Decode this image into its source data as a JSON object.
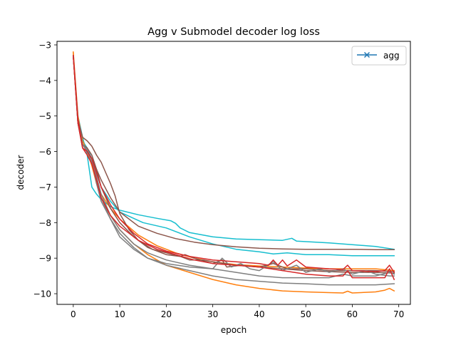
{
  "chart_data": {
    "type": "line",
    "title": "Agg v Submodel decoder log loss",
    "xlabel": "epoch",
    "ylabel": "decoder",
    "xlim": [
      -3.5,
      72.5
    ],
    "ylim": [
      -10.3,
      -2.9
    ],
    "xticks": [
      0,
      10,
      20,
      30,
      40,
      50,
      60,
      70
    ],
    "yticks": [
      -10,
      -9,
      -8,
      -7,
      -6,
      -5,
      -4,
      -3
    ],
    "xtick_labels": [
      "0",
      "10",
      "20",
      "30",
      "40",
      "50",
      "60",
      "70"
    ],
    "ytick_labels": [
      "−10",
      "−9",
      "−8",
      "−7",
      "−6",
      "−5",
      "−4",
      "−3"
    ],
    "grid": false,
    "legend": {
      "position": "upper-right",
      "entries": [
        {
          "label": "agg",
          "color": "#1f77b4",
          "marker": "x"
        }
      ]
    },
    "series": [
      {
        "name": "agg",
        "color": "#1f77b4",
        "marker": "x",
        "points": []
      },
      {
        "color": "#17becf",
        "points": [
          [
            0,
            -3.3
          ],
          [
            1,
            -5.0
          ],
          [
            2,
            -5.6
          ],
          [
            3,
            -6.1
          ],
          [
            4,
            -7.0
          ],
          [
            5,
            -7.2
          ],
          [
            6,
            -7.35
          ],
          [
            8,
            -7.55
          ],
          [
            10,
            -7.65
          ],
          [
            14,
            -7.78
          ],
          [
            18,
            -7.88
          ],
          [
            21,
            -7.95
          ],
          [
            22,
            -8.02
          ],
          [
            23,
            -8.15
          ],
          [
            25,
            -8.28
          ],
          [
            30,
            -8.4
          ],
          [
            35,
            -8.46
          ],
          [
            40,
            -8.48
          ],
          [
            45,
            -8.5
          ],
          [
            47,
            -8.44
          ],
          [
            48,
            -8.52
          ],
          [
            55,
            -8.57
          ],
          [
            60,
            -8.62
          ],
          [
            65,
            -8.67
          ],
          [
            69,
            -8.75
          ]
        ]
      },
      {
        "color": "#17becf",
        "points": [
          [
            0,
            -3.3
          ],
          [
            1,
            -5.1
          ],
          [
            2,
            -5.7
          ],
          [
            3,
            -5.9
          ],
          [
            4,
            -6.2
          ],
          [
            5,
            -6.6
          ],
          [
            6,
            -7.0
          ],
          [
            8,
            -7.4
          ],
          [
            10,
            -7.7
          ],
          [
            15,
            -8.0
          ],
          [
            20,
            -8.15
          ],
          [
            25,
            -8.4
          ],
          [
            30,
            -8.6
          ],
          [
            35,
            -8.75
          ],
          [
            40,
            -8.82
          ],
          [
            43,
            -8.88
          ],
          [
            46,
            -8.85
          ],
          [
            50,
            -8.9
          ],
          [
            55,
            -8.9
          ],
          [
            60,
            -8.93
          ],
          [
            65,
            -8.93
          ],
          [
            69,
            -8.93
          ]
        ]
      },
      {
        "color": "#ff7f0e",
        "points": [
          [
            0,
            -3.2
          ],
          [
            1,
            -5.0
          ],
          [
            2,
            -5.7
          ],
          [
            3,
            -6.0
          ],
          [
            4,
            -6.3
          ],
          [
            5,
            -6.9
          ],
          [
            6,
            -7.3
          ],
          [
            8,
            -7.8
          ],
          [
            10,
            -8.2
          ],
          [
            13,
            -8.6
          ],
          [
            16,
            -8.9
          ],
          [
            20,
            -9.2
          ],
          [
            25,
            -9.4
          ],
          [
            30,
            -9.6
          ],
          [
            35,
            -9.75
          ],
          [
            40,
            -9.85
          ],
          [
            45,
            -9.92
          ],
          [
            50,
            -9.95
          ],
          [
            55,
            -9.97
          ],
          [
            58,
            -9.98
          ],
          [
            59,
            -9.93
          ],
          [
            60,
            -9.98
          ],
          [
            65,
            -9.95
          ],
          [
            67,
            -9.9
          ],
          [
            68,
            -9.85
          ],
          [
            69,
            -9.92
          ]
        ]
      },
      {
        "color": "#ff7f0e",
        "points": [
          [
            0,
            -3.2
          ],
          [
            1,
            -5.1
          ],
          [
            2,
            -5.8
          ],
          [
            3,
            -6.0
          ],
          [
            4,
            -6.4
          ],
          [
            5,
            -6.9
          ],
          [
            6,
            -7.2
          ],
          [
            8,
            -7.6
          ],
          [
            10,
            -7.9
          ],
          [
            14,
            -8.35
          ],
          [
            18,
            -8.65
          ],
          [
            22,
            -8.85
          ],
          [
            26,
            -9.0
          ],
          [
            30,
            -9.1
          ],
          [
            35,
            -9.18
          ],
          [
            40,
            -9.22
          ],
          [
            45,
            -9.25
          ],
          [
            50,
            -9.28
          ],
          [
            55,
            -9.3
          ],
          [
            60,
            -9.3
          ],
          [
            65,
            -9.3
          ],
          [
            69,
            -9.35
          ]
        ]
      },
      {
        "color": "#8c564b",
        "points": [
          [
            0,
            -3.3
          ],
          [
            1,
            -5.2
          ],
          [
            2,
            -5.8
          ],
          [
            3,
            -6.0
          ],
          [
            4,
            -6.2
          ],
          [
            5,
            -6.5
          ],
          [
            6,
            -6.8
          ],
          [
            8,
            -7.3
          ],
          [
            10,
            -7.7
          ],
          [
            14,
            -8.1
          ],
          [
            18,
            -8.3
          ],
          [
            22,
            -8.45
          ],
          [
            26,
            -8.55
          ],
          [
            30,
            -8.62
          ],
          [
            35,
            -8.68
          ],
          [
            40,
            -8.72
          ],
          [
            45,
            -8.74
          ],
          [
            50,
            -8.75
          ],
          [
            55,
            -8.75
          ],
          [
            60,
            -8.75
          ],
          [
            65,
            -8.76
          ],
          [
            69,
            -8.76
          ]
        ]
      },
      {
        "color": "#8c564b",
        "points": [
          [
            0,
            -3.3
          ],
          [
            1,
            -5.1
          ],
          [
            2,
            -5.6
          ],
          [
            3,
            -5.7
          ],
          [
            4,
            -5.85
          ],
          [
            5,
            -6.1
          ],
          [
            6,
            -6.3
          ],
          [
            7,
            -6.6
          ],
          [
            8,
            -6.9
          ],
          [
            9,
            -7.25
          ],
          [
            10,
            -7.75
          ],
          [
            12,
            -8.2
          ],
          [
            14,
            -8.5
          ],
          [
            17,
            -8.75
          ],
          [
            20,
            -8.85
          ],
          [
            23,
            -8.95
          ],
          [
            25,
            -9.05
          ],
          [
            28,
            -9.05
          ],
          [
            30,
            -9.1
          ],
          [
            35,
            -9.2
          ],
          [
            40,
            -9.25
          ],
          [
            45,
            -9.3
          ],
          [
            50,
            -9.35
          ],
          [
            55,
            -9.38
          ],
          [
            60,
            -9.4
          ],
          [
            65,
            -9.4
          ],
          [
            69,
            -9.42
          ]
        ]
      },
      {
        "color": "#8c564b",
        "points": [
          [
            0,
            -3.3
          ],
          [
            1,
            -5.2
          ],
          [
            2,
            -5.8
          ],
          [
            3,
            -5.9
          ],
          [
            4,
            -6.1
          ],
          [
            5,
            -6.5
          ],
          [
            6,
            -7.0
          ],
          [
            8,
            -7.6
          ],
          [
            10,
            -8.0
          ],
          [
            13,
            -8.4
          ],
          [
            16,
            -8.7
          ],
          [
            20,
            -8.9
          ],
          [
            23,
            -8.95
          ],
          [
            24,
            -8.9
          ],
          [
            26,
            -9.0
          ],
          [
            30,
            -9.15
          ],
          [
            32,
            -9.05
          ],
          [
            33,
            -9.25
          ],
          [
            36,
            -9.2
          ],
          [
            40,
            -9.25
          ],
          [
            43,
            -9.15
          ],
          [
            46,
            -9.3
          ],
          [
            50,
            -9.3
          ],
          [
            55,
            -9.35
          ],
          [
            60,
            -9.35
          ],
          [
            65,
            -9.35
          ],
          [
            69,
            -9.38
          ]
        ]
      },
      {
        "color": "#7f7f7f",
        "points": [
          [
            0,
            -3.3
          ],
          [
            1,
            -5.2
          ],
          [
            2,
            -5.9
          ],
          [
            3,
            -6.0
          ],
          [
            4,
            -6.3
          ],
          [
            5,
            -6.9
          ],
          [
            6,
            -7.4
          ],
          [
            8,
            -7.9
          ],
          [
            10,
            -8.3
          ],
          [
            13,
            -8.7
          ],
          [
            16,
            -9.0
          ],
          [
            20,
            -9.2
          ],
          [
            25,
            -9.35
          ],
          [
            30,
            -9.5
          ],
          [
            35,
            -9.6
          ],
          [
            40,
            -9.65
          ],
          [
            45,
            -9.7
          ],
          [
            50,
            -9.72
          ],
          [
            55,
            -9.75
          ],
          [
            60,
            -9.75
          ],
          [
            65,
            -9.75
          ],
          [
            69,
            -9.72
          ]
        ]
      },
      {
        "color": "#7f7f7f",
        "points": [
          [
            0,
            -3.3
          ],
          [
            1,
            -5.1
          ],
          [
            2,
            -5.8
          ],
          [
            3,
            -6.0
          ],
          [
            4,
            -6.2
          ],
          [
            5,
            -6.7
          ],
          [
            6,
            -7.2
          ],
          [
            8,
            -7.8
          ],
          [
            10,
            -8.2
          ],
          [
            13,
            -8.6
          ],
          [
            16,
            -8.85
          ],
          [
            20,
            -9.05
          ],
          [
            25,
            -9.2
          ],
          [
            30,
            -9.3
          ],
          [
            32,
            -9.0
          ],
          [
            34,
            -9.25
          ],
          [
            36,
            -9.15
          ],
          [
            38,
            -9.3
          ],
          [
            40,
            -9.35
          ],
          [
            43,
            -9.1
          ],
          [
            45,
            -9.35
          ],
          [
            48,
            -9.2
          ],
          [
            50,
            -9.4
          ],
          [
            53,
            -9.3
          ],
          [
            55,
            -9.4
          ],
          [
            58,
            -9.3
          ],
          [
            60,
            -9.45
          ],
          [
            63,
            -9.35
          ],
          [
            65,
            -9.45
          ],
          [
            68,
            -9.5
          ],
          [
            69,
            -9.5
          ]
        ]
      },
      {
        "color": "#7f7f7f",
        "points": [
          [
            0,
            -3.3
          ],
          [
            1,
            -5.2
          ],
          [
            2,
            -5.8
          ],
          [
            3,
            -5.95
          ],
          [
            4,
            -6.2
          ],
          [
            5,
            -6.8
          ],
          [
            6,
            -7.3
          ],
          [
            8,
            -7.9
          ],
          [
            10,
            -8.4
          ],
          [
            13,
            -8.75
          ],
          [
            16,
            -9.0
          ],
          [
            20,
            -9.15
          ],
          [
            25,
            -9.25
          ],
          [
            30,
            -9.3
          ],
          [
            35,
            -9.4
          ],
          [
            40,
            -9.5
          ],
          [
            45,
            -9.55
          ],
          [
            50,
            -9.55
          ],
          [
            55,
            -9.55
          ],
          [
            58,
            -9.45
          ],
          [
            60,
            -9.5
          ],
          [
            65,
            -9.5
          ],
          [
            68,
            -9.4
          ],
          [
            69,
            -9.45
          ]
        ]
      },
      {
        "color": "#d62728",
        "points": [
          [
            0,
            -3.3
          ],
          [
            1,
            -5.1
          ],
          [
            2,
            -5.9
          ],
          [
            3,
            -6.0
          ],
          [
            4,
            -6.2
          ],
          [
            5,
            -6.6
          ],
          [
            6,
            -7.0
          ],
          [
            8,
            -7.5
          ],
          [
            10,
            -7.9
          ],
          [
            13,
            -8.3
          ],
          [
            16,
            -8.6
          ],
          [
            20,
            -8.8
          ],
          [
            25,
            -8.95
          ],
          [
            30,
            -9.05
          ],
          [
            35,
            -9.1
          ],
          [
            40,
            -9.15
          ],
          [
            42,
            -9.2
          ],
          [
            43,
            -9.05
          ],
          [
            44,
            -9.2
          ],
          [
            45,
            -9.05
          ],
          [
            46,
            -9.22
          ],
          [
            48,
            -9.05
          ],
          [
            50,
            -9.25
          ],
          [
            55,
            -9.3
          ],
          [
            58,
            -9.32
          ],
          [
            59,
            -9.2
          ],
          [
            60,
            -9.35
          ],
          [
            65,
            -9.38
          ],
          [
            67,
            -9.35
          ],
          [
            68,
            -9.2
          ],
          [
            69,
            -9.4
          ]
        ]
      },
      {
        "color": "#d62728",
        "points": [
          [
            0,
            -3.3
          ],
          [
            1,
            -5.2
          ],
          [
            2,
            -5.9
          ],
          [
            3,
            -6.1
          ],
          [
            4,
            -6.35
          ],
          [
            5,
            -6.8
          ],
          [
            6,
            -7.3
          ],
          [
            8,
            -7.8
          ],
          [
            10,
            -8.1
          ],
          [
            14,
            -8.5
          ],
          [
            18,
            -8.75
          ],
          [
            22,
            -8.9
          ],
          [
            26,
            -9.05
          ],
          [
            30,
            -9.15
          ],
          [
            35,
            -9.2
          ],
          [
            40,
            -9.25
          ],
          [
            45,
            -9.35
          ],
          [
            50,
            -9.45
          ],
          [
            55,
            -9.5
          ],
          [
            58,
            -9.5
          ],
          [
            59,
            -9.35
          ],
          [
            60,
            -9.55
          ],
          [
            65,
            -9.55
          ],
          [
            67,
            -9.55
          ],
          [
            68,
            -9.3
          ],
          [
            69,
            -9.6
          ]
        ]
      }
    ]
  }
}
